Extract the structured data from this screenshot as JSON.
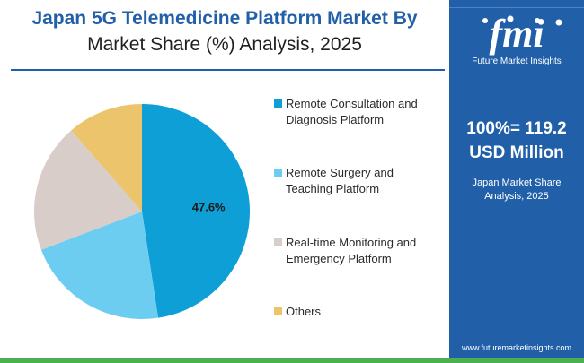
{
  "title": {
    "line1": "Japan 5G Telemedicine Platform Market By",
    "line2": "Market Share (%) Analysis, 2025"
  },
  "sidebar": {
    "logo_letters": "fmi",
    "logo_subtitle": "Future Market Insights",
    "total_line1": "100%= 119.2",
    "total_line2": "USD Million",
    "sub_line1": "Japan Market Share",
    "sub_line2": "Analysis, 2025",
    "website": "www.futuremarketinsights.com"
  },
  "colors": {
    "brand_blue": "#2160a8",
    "green_bar": "#4caf50"
  },
  "chart_data": {
    "type": "pie",
    "title": "Japan 5G Telemedicine Platform Market By Market Share (%) Analysis, 2025",
    "total": "100%= 119.2 USD Million",
    "legend_position": "right",
    "slices": [
      {
        "label": "Remote Consultation and Diagnosis Platform",
        "value": 47.6,
        "color": "#0e9fd7",
        "data_label": "47.6%"
      },
      {
        "label": "Remote Surgery and Teaching Platform",
        "value": 21.6,
        "color": "#6dcdf1",
        "data_label": ""
      },
      {
        "label": "Real-time Monitoring and Emergency Platform",
        "value": 19.4,
        "color": "#d8cdc8",
        "data_label": ""
      },
      {
        "label": "Others",
        "value": 11.4,
        "color": "#ecc46b",
        "data_label": ""
      }
    ],
    "legend": [
      {
        "line1": "Remote Consultation and",
        "line2": "Diagnosis Platform"
      },
      {
        "line1": "Remote Surgery and",
        "line2": "Teaching Platform"
      },
      {
        "line1": "Real-time Monitoring and",
        "line2": "Emergency Platform"
      },
      {
        "line1": "Others",
        "line2": ""
      }
    ]
  }
}
